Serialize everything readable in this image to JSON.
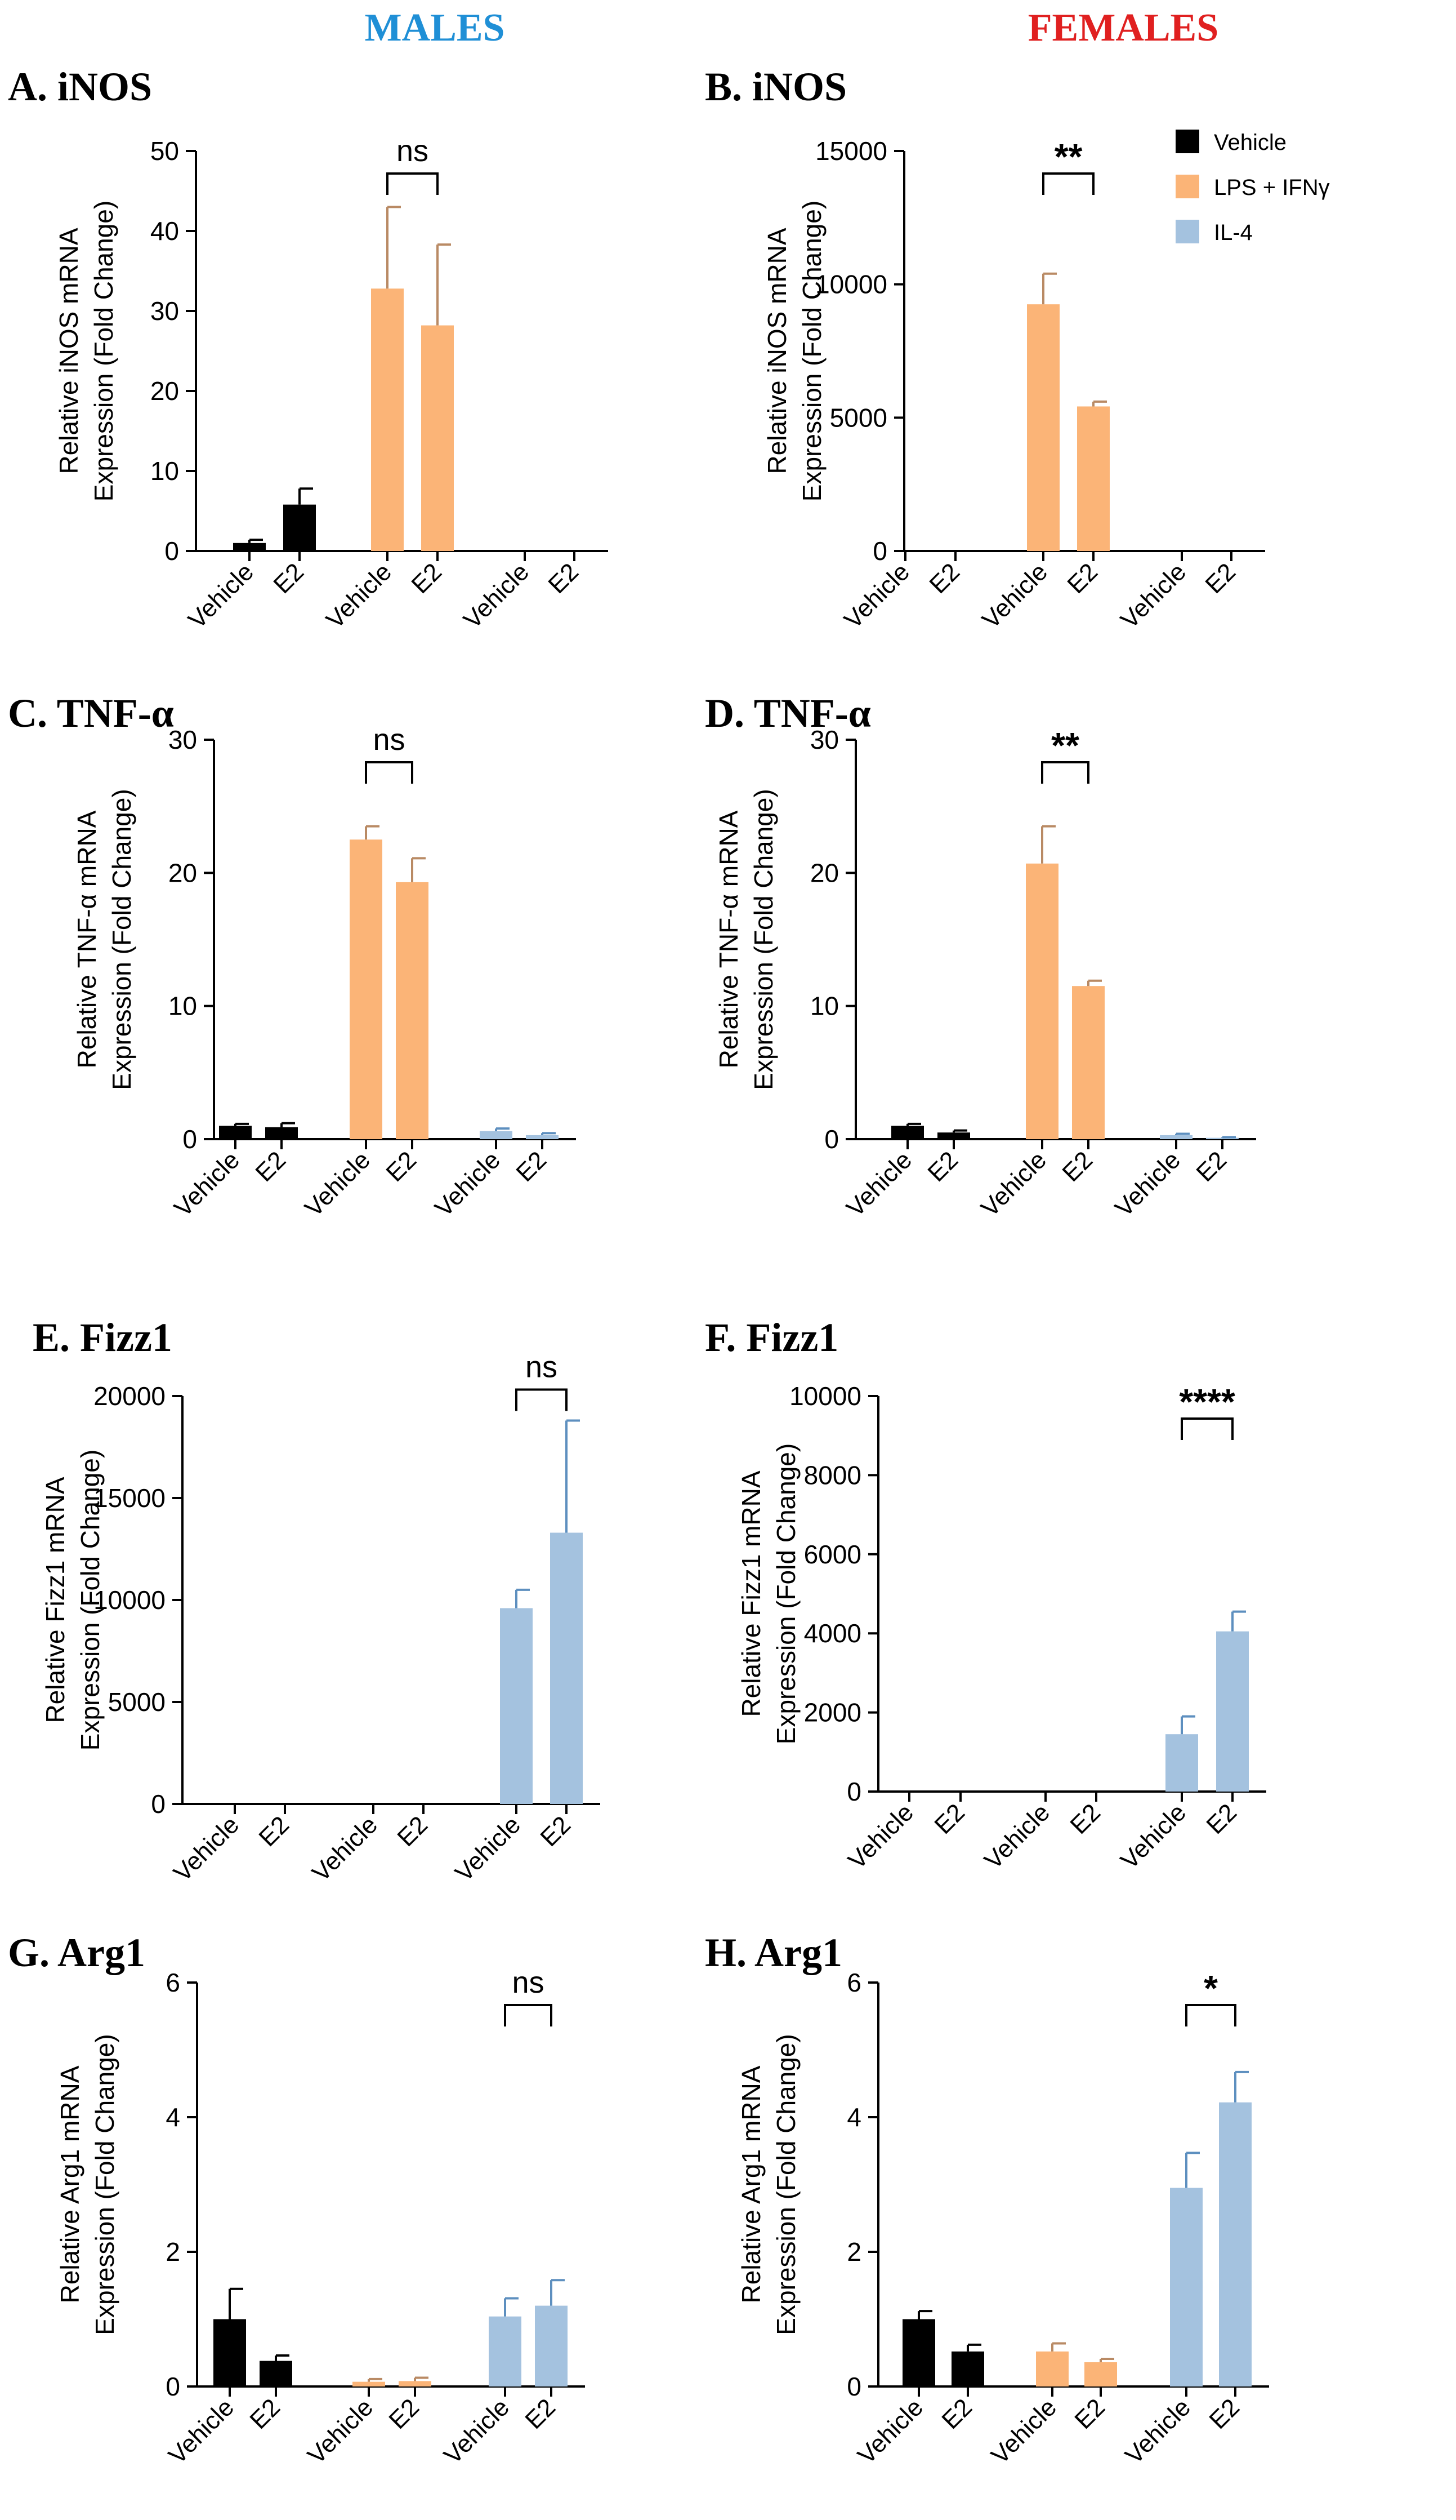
{
  "header": {
    "males": "MALES",
    "females": "FEMALES"
  },
  "colors": {
    "Vehicle": "#000000",
    "LPS + IFNγ": "#fbb477",
    "IL-4": "#a4c2df",
    "males_title": "#1f8fd6",
    "females_title": "#e02020"
  },
  "legend": [
    "Vehicle",
    "LPS + IFNγ",
    "IL-4"
  ],
  "chart_data": [
    {
      "id": "A",
      "type": "bar",
      "title": "A. iNOS",
      "ylabel": [
        "Relative iNOS mRNA",
        "Expression (Fold Change)"
      ],
      "ylim": [
        0,
        50
      ],
      "yticks": [
        0,
        10,
        20,
        30,
        40,
        50
      ],
      "categories": [
        "Vehicle",
        "E2",
        "Vehicle",
        "E2",
        "Vehicle",
        "E2"
      ],
      "groups": [
        "Vehicle",
        "Vehicle",
        "LPS + IFNγ",
        "LPS + IFNγ",
        "IL-4",
        "IL-4"
      ],
      "values": [
        1.0,
        5.8,
        32.8,
        28.2,
        0,
        0
      ],
      "errors": [
        0.4,
        2.0,
        10.2,
        10.1,
        0,
        0
      ],
      "significance": {
        "label": "ns",
        "between": [
          2,
          3
        ]
      }
    },
    {
      "id": "B",
      "type": "bar",
      "title": "B. iNOS",
      "ylabel": [
        "Relative iNOS mRNA",
        "Expression (Fold Change)"
      ],
      "ylim": [
        0,
        15000
      ],
      "yticks": [
        0,
        5000,
        10000,
        15000
      ],
      "categories": [
        "Vehicle",
        "E2",
        "Vehicle",
        "E2",
        "Vehicle",
        "E2"
      ],
      "groups": [
        "Vehicle",
        "Vehicle",
        "LPS + IFNγ",
        "LPS + IFNγ",
        "IL-4",
        "IL-4"
      ],
      "values": [
        0,
        0,
        9250,
        5420,
        0,
        0
      ],
      "errors": [
        0,
        0,
        1150,
        180,
        0,
        0
      ],
      "significance": {
        "label": "**",
        "between": [
          2,
          3
        ]
      }
    },
    {
      "id": "C",
      "type": "bar",
      "title": "C. TNF-α",
      "ylabel": [
        "Relative TNF-α mRNA",
        "Expression (Fold Change)"
      ],
      "ylim": [
        0,
        30
      ],
      "yticks": [
        0,
        10,
        20,
        30
      ],
      "categories": [
        "Vehicle",
        "E2",
        "Vehicle",
        "E2",
        "Vehicle",
        "E2"
      ],
      "groups": [
        "Vehicle",
        "Vehicle",
        "LPS + IFNγ",
        "LPS + IFNγ",
        "IL-4",
        "IL-4"
      ],
      "values": [
        1.0,
        0.9,
        22.5,
        19.3,
        0.6,
        0.3
      ],
      "errors": [
        0.15,
        0.3,
        1.0,
        1.8,
        0.2,
        0.15
      ],
      "significance": {
        "label": "ns",
        "between": [
          2,
          3
        ]
      }
    },
    {
      "id": "D",
      "type": "bar",
      "title": "D. TNF-α",
      "ylabel": [
        "Relative TNF-α mRNA",
        "Expression (Fold Change)"
      ],
      "ylim": [
        0,
        30
      ],
      "yticks": [
        0,
        10,
        20,
        30
      ],
      "categories": [
        "Vehicle",
        "E2",
        "Vehicle",
        "E2",
        "Vehicle",
        "E2"
      ],
      "groups": [
        "Vehicle",
        "Vehicle",
        "LPS + IFNγ",
        "LPS + IFNγ",
        "IL-4",
        "IL-4"
      ],
      "values": [
        1.0,
        0.5,
        20.7,
        11.5,
        0.3,
        0.1
      ],
      "errors": [
        0.15,
        0.15,
        2.8,
        0.4,
        0.1,
        0.05
      ],
      "significance": {
        "label": "**",
        "between": [
          2,
          3
        ]
      }
    },
    {
      "id": "E",
      "type": "bar",
      "title": "E. Fizz1",
      "ylabel": [
        "Relative Fizz1 mRNA",
        "Expression (Fold Change)"
      ],
      "ylim": [
        0,
        20000
      ],
      "yticks": [
        0,
        5000,
        10000,
        15000,
        20000
      ],
      "categories": [
        "Vehicle",
        "E2",
        "Vehicle",
        "E2",
        "Vehicle",
        "E2"
      ],
      "groups": [
        "Vehicle",
        "Vehicle",
        "LPS + IFNγ",
        "LPS + IFNγ",
        "IL-4",
        "IL-4"
      ],
      "values": [
        0,
        0,
        0,
        0,
        9600,
        13300
      ],
      "errors": [
        0,
        0,
        0,
        0,
        900,
        5500
      ],
      "significance": {
        "label": "ns",
        "between": [
          4,
          5
        ]
      }
    },
    {
      "id": "F",
      "type": "bar",
      "title": "F. Fizz1",
      "ylabel": [
        "Relative Fizz1 mRNA",
        "Expression (Fold Change)"
      ],
      "ylim": [
        0,
        10000
      ],
      "yticks": [
        0,
        2000,
        4000,
        6000,
        8000,
        10000
      ],
      "categories": [
        "Vehicle",
        "E2",
        "Vehicle",
        "E2",
        "Vehicle",
        "E2"
      ],
      "groups": [
        "Vehicle",
        "Vehicle",
        "LPS + IFNγ",
        "LPS + IFNγ",
        "IL-4",
        "IL-4"
      ],
      "values": [
        0,
        0,
        0,
        0,
        1450,
        4050
      ],
      "errors": [
        0,
        0,
        0,
        0,
        450,
        500
      ],
      "significance": {
        "label": "****",
        "between": [
          4,
          5
        ]
      }
    },
    {
      "id": "G",
      "type": "bar",
      "title": "G. Arg1",
      "ylabel": [
        "Relative Arg1 mRNA",
        "Expression (Fold Change)"
      ],
      "ylim": [
        0,
        6
      ],
      "yticks": [
        0,
        2,
        4,
        6
      ],
      "categories": [
        "Vehicle",
        "E2",
        "Vehicle",
        "E2",
        "Vehicle",
        "E2"
      ],
      "groups": [
        "Vehicle",
        "Vehicle",
        "LPS + IFNγ",
        "LPS + IFNγ",
        "IL-4",
        "IL-4"
      ],
      "values": [
        1.0,
        0.38,
        0.07,
        0.08,
        1.04,
        1.2
      ],
      "errors": [
        0.45,
        0.08,
        0.04,
        0.05,
        0.27,
        0.38
      ],
      "significance": {
        "label": "ns",
        "between": [
          4,
          5
        ]
      }
    },
    {
      "id": "H",
      "type": "bar",
      "title": "H. Arg1",
      "ylabel": [
        "Relative Arg1 mRNA",
        "Expression (Fold Change)"
      ],
      "ylim": [
        0,
        6
      ],
      "yticks": [
        0,
        2,
        4,
        6
      ],
      "categories": [
        "Vehicle",
        "E2",
        "Vehicle",
        "E2",
        "Vehicle",
        "E2"
      ],
      "groups": [
        "Vehicle",
        "Vehicle",
        "LPS + IFNγ",
        "LPS + IFNγ",
        "IL-4",
        "IL-4"
      ],
      "values": [
        1.0,
        0.52,
        0.52,
        0.36,
        2.95,
        4.22
      ],
      "errors": [
        0.12,
        0.1,
        0.12,
        0.05,
        0.52,
        0.45
      ],
      "significance": {
        "label": "*",
        "between": [
          4,
          5
        ]
      }
    }
  ]
}
